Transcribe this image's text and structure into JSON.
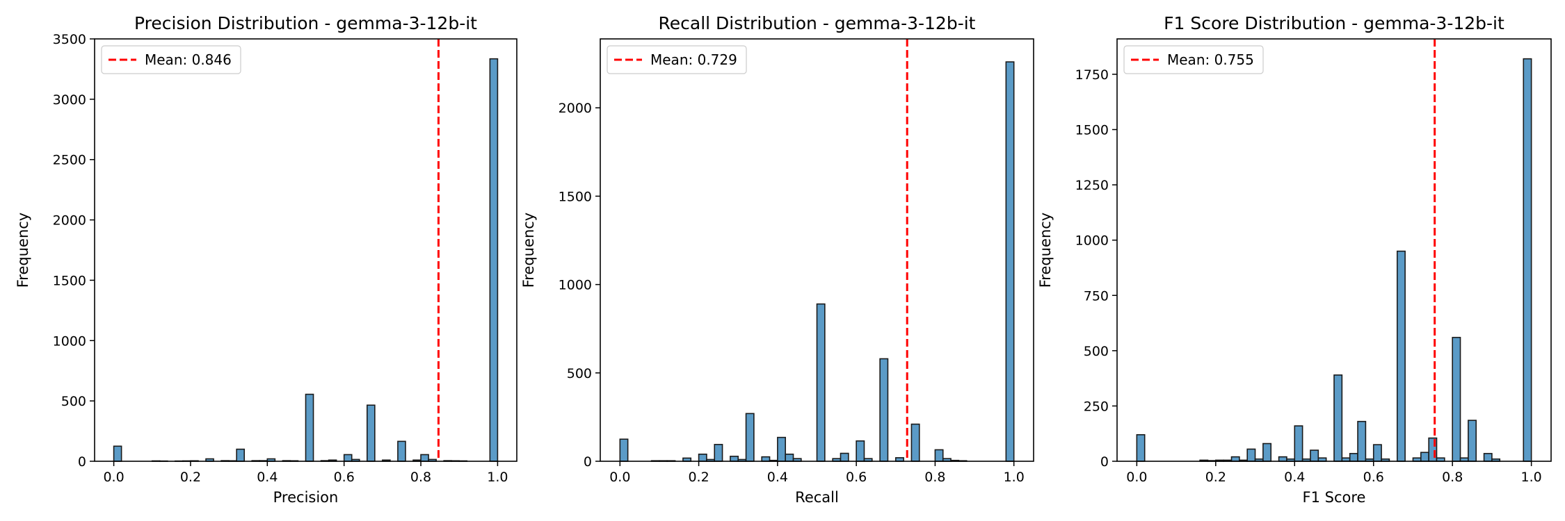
{
  "chart_data": [
    {
      "type": "histogram",
      "title": "Precision Distribution - gemma-3-12b-it",
      "xlabel": "Precision",
      "ylabel": "Frequency",
      "xlim": [
        -0.05,
        1.05
      ],
      "ylim": [
        0,
        3500
      ],
      "xticks": [
        "0.0",
        "0.2",
        "0.4",
        "0.6",
        "0.8",
        "1.0"
      ],
      "xtick_values": [
        0,
        0.2,
        0.4,
        0.6,
        0.8,
        1.0
      ],
      "yticks": [
        "0",
        "500",
        "1000",
        "1500",
        "2000",
        "2500",
        "3000",
        "3500"
      ],
      "ytick_values": [
        0,
        500,
        1000,
        1500,
        2000,
        2500,
        3000,
        3500
      ],
      "bin_width": 0.02,
      "bars": [
        {
          "x": 0.0,
          "count": 125
        },
        {
          "x": 0.1,
          "count": 3
        },
        {
          "x": 0.12,
          "count": 2
        },
        {
          "x": 0.16,
          "count": 2
        },
        {
          "x": 0.18,
          "count": 3
        },
        {
          "x": 0.2,
          "count": 4
        },
        {
          "x": 0.24,
          "count": 20
        },
        {
          "x": 0.28,
          "count": 5
        },
        {
          "x": 0.3,
          "count": 4
        },
        {
          "x": 0.32,
          "count": 100
        },
        {
          "x": 0.36,
          "count": 5
        },
        {
          "x": 0.38,
          "count": 5
        },
        {
          "x": 0.4,
          "count": 20
        },
        {
          "x": 0.44,
          "count": 5
        },
        {
          "x": 0.46,
          "count": 4
        },
        {
          "x": 0.5,
          "count": 555
        },
        {
          "x": 0.54,
          "count": 5
        },
        {
          "x": 0.56,
          "count": 10
        },
        {
          "x": 0.6,
          "count": 55
        },
        {
          "x": 0.62,
          "count": 15
        },
        {
          "x": 0.66,
          "count": 465
        },
        {
          "x": 0.7,
          "count": 10
        },
        {
          "x": 0.74,
          "count": 165
        },
        {
          "x": 0.78,
          "count": 10
        },
        {
          "x": 0.8,
          "count": 55
        },
        {
          "x": 0.82,
          "count": 15
        },
        {
          "x": 0.86,
          "count": 5
        },
        {
          "x": 0.88,
          "count": 4
        },
        {
          "x": 0.9,
          "count": 3
        },
        {
          "x": 0.98,
          "count": 3335
        }
      ],
      "mean_line": {
        "value": 0.846,
        "label": "Mean: 0.846"
      },
      "legend_position": "upper-left",
      "bar_color": "#5b9bc7",
      "mean_color": "#ff0000"
    },
    {
      "type": "histogram",
      "title": "Recall Distribution - gemma-3-12b-it",
      "xlabel": "Recall",
      "ylabel": "Frequency",
      "xlim": [
        -0.05,
        1.05
      ],
      "ylim": [
        0,
        2390
      ],
      "xticks": [
        "0.0",
        "0.2",
        "0.4",
        "0.6",
        "0.8",
        "1.0"
      ],
      "xtick_values": [
        0,
        0.2,
        0.4,
        0.6,
        0.8,
        1.0
      ],
      "yticks": [
        "0",
        "500",
        "1000",
        "1500",
        "2000"
      ],
      "ytick_values": [
        0,
        500,
        1000,
        1500,
        2000
      ],
      "bin_width": 0.02,
      "bars": [
        {
          "x": 0.0,
          "count": 125
        },
        {
          "x": 0.08,
          "count": 3
        },
        {
          "x": 0.1,
          "count": 3
        },
        {
          "x": 0.12,
          "count": 3
        },
        {
          "x": 0.16,
          "count": 18
        },
        {
          "x": 0.2,
          "count": 40
        },
        {
          "x": 0.22,
          "count": 10
        },
        {
          "x": 0.24,
          "count": 95
        },
        {
          "x": 0.28,
          "count": 28
        },
        {
          "x": 0.3,
          "count": 10
        },
        {
          "x": 0.32,
          "count": 270
        },
        {
          "x": 0.36,
          "count": 25
        },
        {
          "x": 0.38,
          "count": 5
        },
        {
          "x": 0.4,
          "count": 135
        },
        {
          "x": 0.42,
          "count": 40
        },
        {
          "x": 0.44,
          "count": 15
        },
        {
          "x": 0.5,
          "count": 890
        },
        {
          "x": 0.54,
          "count": 15
        },
        {
          "x": 0.56,
          "count": 45
        },
        {
          "x": 0.6,
          "count": 115
        },
        {
          "x": 0.62,
          "count": 15
        },
        {
          "x": 0.66,
          "count": 580
        },
        {
          "x": 0.7,
          "count": 20
        },
        {
          "x": 0.74,
          "count": 210
        },
        {
          "x": 0.8,
          "count": 65
        },
        {
          "x": 0.82,
          "count": 15
        },
        {
          "x": 0.84,
          "count": 5
        },
        {
          "x": 0.86,
          "count": 3
        },
        {
          "x": 0.98,
          "count": 2260
        }
      ],
      "mean_line": {
        "value": 0.729,
        "label": "Mean: 0.729"
      },
      "legend_position": "upper-left",
      "bar_color": "#5b9bc7",
      "mean_color": "#ff0000"
    },
    {
      "type": "histogram",
      "title": "F1 Score Distribution - gemma-3-12b-it",
      "xlabel": "F1 Score",
      "ylabel": "Frequency",
      "xlim": [
        -0.05,
        1.05
      ],
      "ylim": [
        0,
        1910
      ],
      "xticks": [
        "0.0",
        "0.2",
        "0.4",
        "0.6",
        "0.8",
        "1.0"
      ],
      "xtick_values": [
        0,
        0.2,
        0.4,
        0.6,
        0.8,
        1.0
      ],
      "yticks": [
        "0",
        "250",
        "500",
        "750",
        "1000",
        "1250",
        "1500",
        "1750"
      ],
      "ytick_values": [
        0,
        250,
        500,
        750,
        1000,
        1250,
        1500,
        1750
      ],
      "bin_width": 0.02,
      "bars": [
        {
          "x": 0.0,
          "count": 120
        },
        {
          "x": 0.16,
          "count": 5
        },
        {
          "x": 0.18,
          "count": 3
        },
        {
          "x": 0.2,
          "count": 5
        },
        {
          "x": 0.22,
          "count": 5
        },
        {
          "x": 0.24,
          "count": 20
        },
        {
          "x": 0.26,
          "count": 5
        },
        {
          "x": 0.28,
          "count": 55
        },
        {
          "x": 0.3,
          "count": 10
        },
        {
          "x": 0.32,
          "count": 80
        },
        {
          "x": 0.36,
          "count": 20
        },
        {
          "x": 0.38,
          "count": 10
        },
        {
          "x": 0.4,
          "count": 160
        },
        {
          "x": 0.42,
          "count": 10
        },
        {
          "x": 0.44,
          "count": 50
        },
        {
          "x": 0.46,
          "count": 15
        },
        {
          "x": 0.5,
          "count": 390
        },
        {
          "x": 0.52,
          "count": 15
        },
        {
          "x": 0.54,
          "count": 35
        },
        {
          "x": 0.56,
          "count": 180
        },
        {
          "x": 0.58,
          "count": 10
        },
        {
          "x": 0.6,
          "count": 75
        },
        {
          "x": 0.62,
          "count": 10
        },
        {
          "x": 0.66,
          "count": 950
        },
        {
          "x": 0.7,
          "count": 15
        },
        {
          "x": 0.72,
          "count": 40
        },
        {
          "x": 0.74,
          "count": 105
        },
        {
          "x": 0.76,
          "count": 15
        },
        {
          "x": 0.8,
          "count": 560
        },
        {
          "x": 0.82,
          "count": 15
        },
        {
          "x": 0.84,
          "count": 185
        },
        {
          "x": 0.88,
          "count": 35
        },
        {
          "x": 0.9,
          "count": 10
        },
        {
          "x": 0.98,
          "count": 1820
        }
      ],
      "mean_line": {
        "value": 0.755,
        "label": "Mean: 0.755"
      },
      "legend_position": "upper-left",
      "bar_color": "#5b9bc7",
      "mean_color": "#ff0000"
    }
  ]
}
